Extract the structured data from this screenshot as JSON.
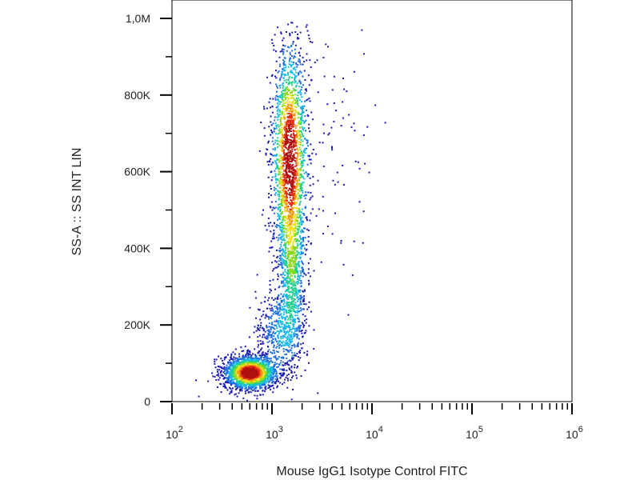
{
  "chart_data": {
    "type": "scatter",
    "subtype": "flow-cytometry-density-dot-plot",
    "xlabel": "Mouse IgG1 Isotype Control FITC",
    "ylabel": "SS-A :: SS INT LIN",
    "x_scale": "log",
    "y_scale": "linear",
    "xlim": [
      100,
      1000000
    ],
    "ylim": [
      -15000,
      1000000
    ],
    "x_ticks": [
      {
        "value": 100,
        "base": "10",
        "exp": "2"
      },
      {
        "value": 1000,
        "base": "10",
        "exp": "3"
      },
      {
        "value": 10000,
        "base": "10",
        "exp": "4"
      },
      {
        "value": 100000,
        "base": "10",
        "exp": "5"
      },
      {
        "value": 1000000,
        "base": "10",
        "exp": "6"
      }
    ],
    "y_ticks": [
      {
        "value": 0,
        "label": "0"
      },
      {
        "value": 200000,
        "label": "200K"
      },
      {
        "value": 400000,
        "label": "400K"
      },
      {
        "value": 600000,
        "label": "600K"
      },
      {
        "value": 800000,
        "label": "800K"
      },
      {
        "value": 1000000,
        "label": "1,0M"
      }
    ],
    "density_colors": [
      "#1a1ab0",
      "#1f6fe0",
      "#18b8e8",
      "#22d08a",
      "#8ad820",
      "#f0e020",
      "#f59a10",
      "#e82a10",
      "#b00f0f"
    ],
    "grid": false,
    "legend": "none",
    "populations": [
      {
        "name": "",
        "center_x": 600,
        "center_y": 75000,
        "spread_x_decades": 0.13,
        "spread_y": 22000,
        "peak_density": 1.0
      },
      {
        "name": "",
        "center_x": 1500,
        "center_y": 640000,
        "spread_x_decades": 0.09,
        "spread_y": 150000,
        "peak_density": 0.95
      },
      {
        "name": "",
        "center_x": 1600,
        "center_y": 330000,
        "spread_x_decades": 0.07,
        "spread_y": 110000,
        "peak_density": 0.35
      },
      {
        "name": "",
        "center_x": 1200,
        "center_y": 180000,
        "spread_x_decades": 0.12,
        "spread_y": 60000,
        "peak_density": 0.25
      },
      {
        "name": "",
        "center_x": 3500,
        "center_y": 650000,
        "spread_x_decades": 0.25,
        "spread_y": 180000,
        "peak_density": 0.05
      }
    ]
  }
}
